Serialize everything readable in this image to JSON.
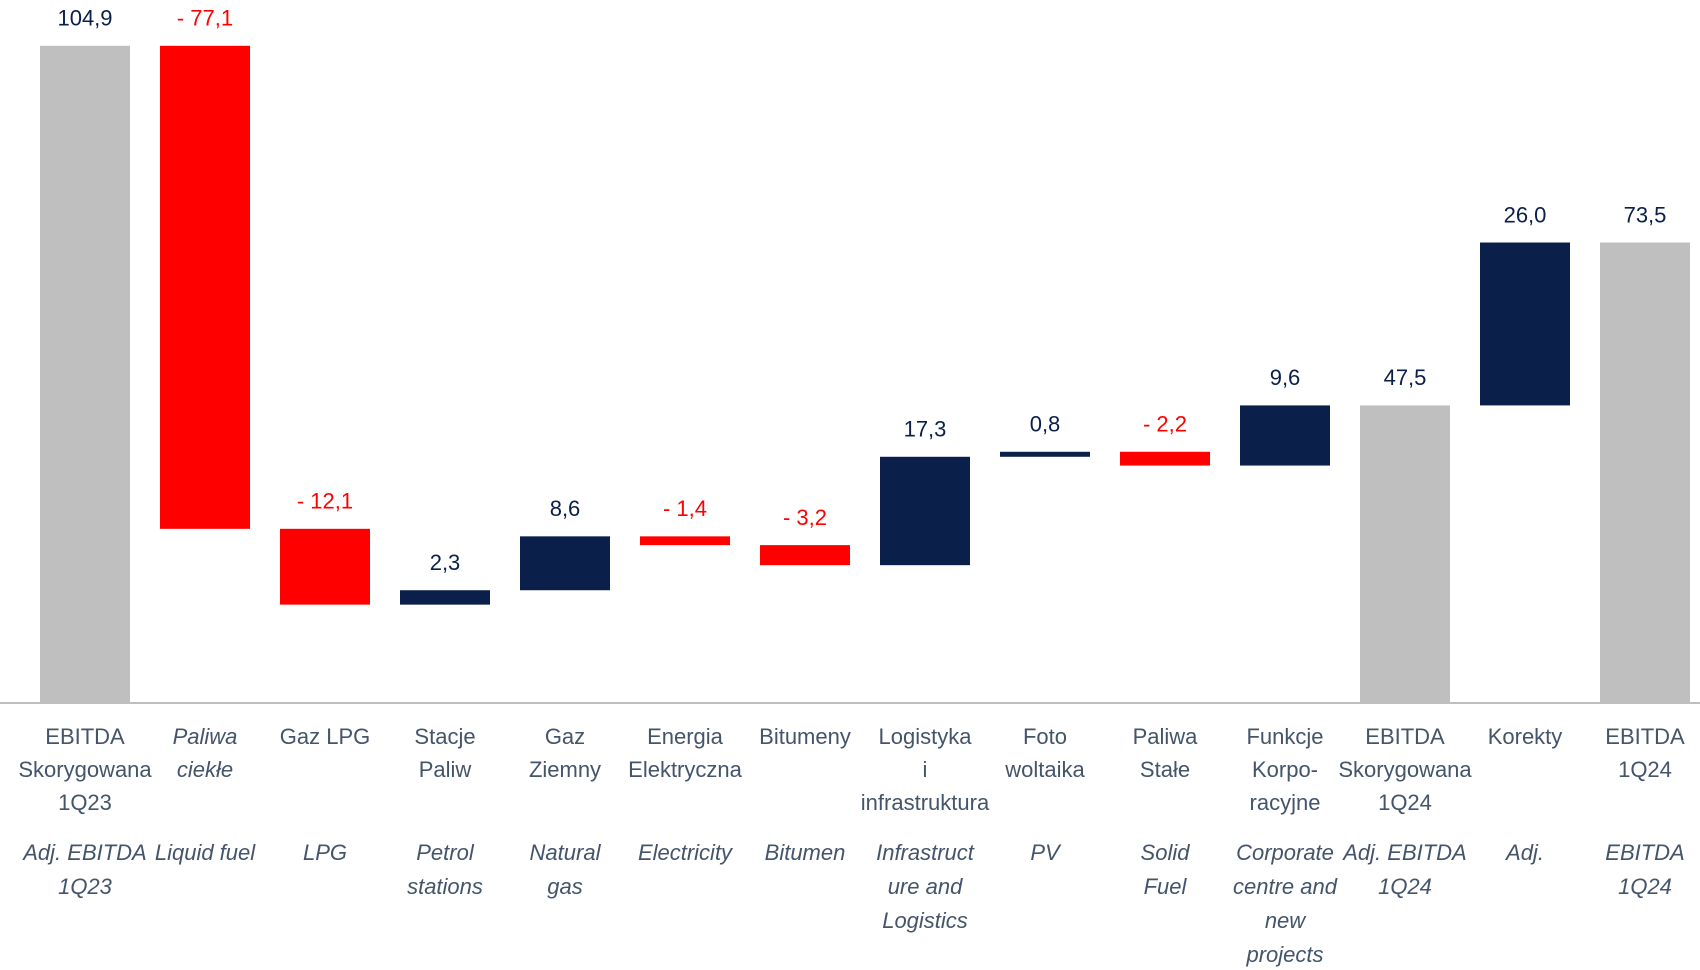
{
  "chart_data": {
    "type": "waterfall",
    "categories": [
      [
        "EBITDA",
        "Skorygowana",
        "1Q23"
      ],
      [
        "Paliwa",
        "ciekłe"
      ],
      [
        "Gaz LPG"
      ],
      [
        "Stacje",
        "Paliw"
      ],
      [
        "Gaz",
        "Ziemny"
      ],
      [
        "Energia",
        "Elektryczna"
      ],
      [
        "Bitumeny"
      ],
      [
        "Logistyka",
        "i",
        "infrastruktura"
      ],
      [
        "Foto",
        "woltaika"
      ],
      [
        "Paliwa",
        "Stałe"
      ],
      [
        "Funkcje",
        "Korpo-",
        "racyjne"
      ],
      [
        "EBITDA",
        "Skorygowana",
        "1Q24"
      ],
      [
        "Korekty"
      ],
      [
        "EBITDA",
        "1Q24"
      ]
    ],
    "categories_en": [
      [
        "Adj. EBITDA",
        "1Q23"
      ],
      [
        "Liquid fuel"
      ],
      [
        "LPG"
      ],
      [
        "Petrol",
        "stations"
      ],
      [
        "Natural",
        "gas"
      ],
      [
        "Electricity"
      ],
      [
        "Bitumen"
      ],
      [
        "Infrastruct",
        "ure and",
        "Logistics"
      ],
      [
        "PV"
      ],
      [
        "Solid",
        "Fuel"
      ],
      [
        "Corporate",
        "centre and",
        "new",
        "projects"
      ],
      [
        "Adj. EBITDA",
        "1Q24"
      ],
      [
        "Adj."
      ],
      [
        "EBITDA",
        "1Q24"
      ]
    ],
    "values": [
      104.9,
      -77.1,
      -12.1,
      2.3,
      8.6,
      -1.4,
      -3.2,
      17.3,
      0.8,
      -2.2,
      9.6,
      47.5,
      26.0,
      73.5
    ],
    "value_labels": [
      "104,9",
      "- 77,1",
      "- 12,1",
      "2,3",
      "8,6",
      "- 1,4",
      "- 3,2",
      "17,3",
      "0,8",
      "- 2,2",
      "9,6",
      "47,5",
      "26,0",
      "73,5"
    ],
    "measure": [
      "total",
      "relative",
      "relative",
      "relative",
      "relative",
      "relative",
      "relative",
      "relative",
      "relative",
      "relative",
      "relative",
      "total",
      "relative",
      "total"
    ],
    "colors": {
      "total": "#bfbfbf",
      "increase": "#0a1f4a",
      "decrease": "#ff0000"
    }
  }
}
